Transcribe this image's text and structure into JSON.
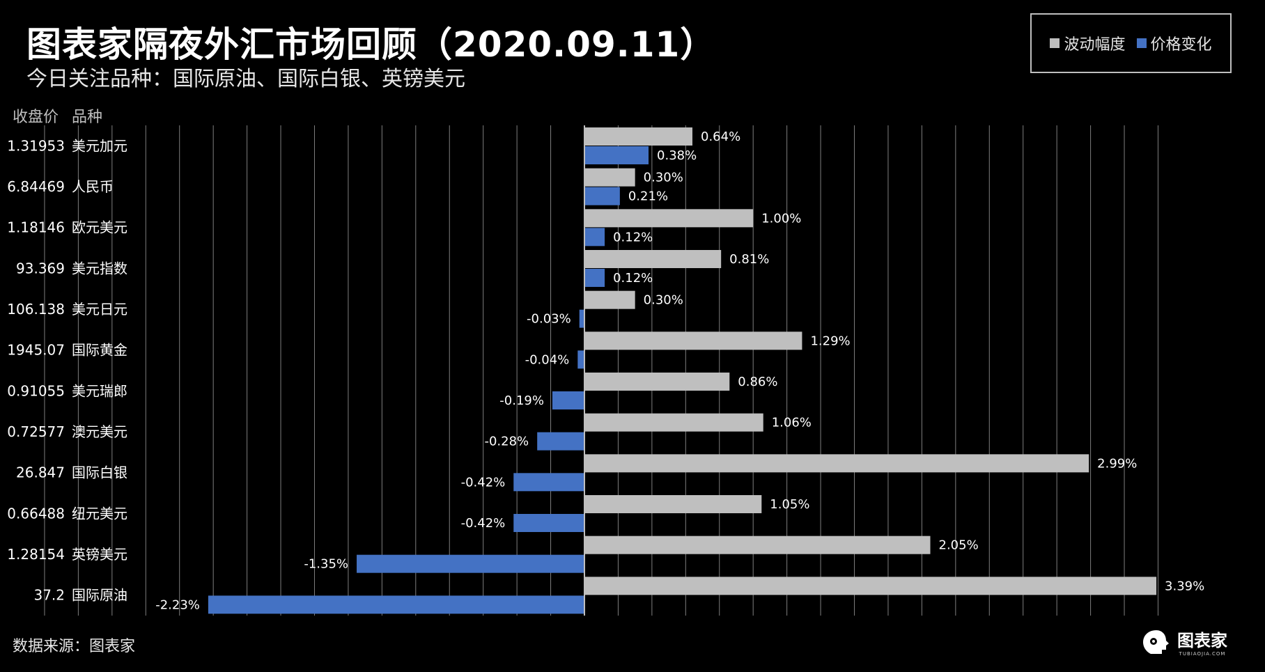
{
  "header": {
    "title": "图表家隔夜外汇市场回顾（2020.09.11）",
    "subtitle": "今日关注品种：国际原油、国际白银、英镑美元"
  },
  "legend": {
    "items": [
      {
        "label": "波动幅度",
        "color": "#bfbfbf"
      },
      {
        "label": "价格变化",
        "color": "#4472c4"
      }
    ]
  },
  "columns": {
    "price": "收盘价",
    "name": "品种"
  },
  "footer": {
    "source": "数据来源：图表家",
    "logo_text": "图表家",
    "logo_sub": "TUBIAOJIA.COM"
  },
  "chart_data": {
    "type": "bar",
    "orientation": "horizontal",
    "xlim": [
      -3.25,
      3.5
    ],
    "grid": true,
    "categories": [
      "美元加元",
      "人民币",
      "欧元美元",
      "美元指数",
      "美元日元",
      "国际黄金",
      "美元瑞郎",
      "澳元美元",
      "国际白银",
      "纽元美元",
      "英镑美元",
      "国际原油"
    ],
    "close_prices": [
      "1.31953",
      "6.84469",
      "1.18146",
      "93.369",
      "106.138",
      "1945.07",
      "0.91055",
      "0.72577",
      "26.847",
      "0.66488",
      "1.28154",
      "37.2"
    ],
    "series": [
      {
        "name": "波动幅度",
        "color": "#bfbfbf",
        "values": [
          0.64,
          0.3,
          1.0,
          0.81,
          0.3,
          1.29,
          0.86,
          1.06,
          2.99,
          1.05,
          2.05,
          3.39
        ],
        "labels": [
          "0.64%",
          "0.30%",
          "1.00%",
          "0.81%",
          "0.30%",
          "1.29%",
          "0.86%",
          "1.06%",
          "2.99%",
          "1.05%",
          "2.05%",
          "3.39%"
        ]
      },
      {
        "name": "价格变化",
        "color": "#4472c4",
        "values": [
          0.38,
          0.21,
          0.12,
          0.12,
          -0.03,
          -0.04,
          -0.19,
          -0.28,
          -0.42,
          -0.42,
          -1.35,
          -2.23
        ],
        "labels": [
          "0.38%",
          "0.21%",
          "0.12%",
          "0.12%",
          "-0.03%",
          "-0.04%",
          "-0.19%",
          "-0.28%",
          "-0.42%",
          "-0.42%",
          "-1.35%",
          "-2.23%"
        ]
      }
    ]
  }
}
